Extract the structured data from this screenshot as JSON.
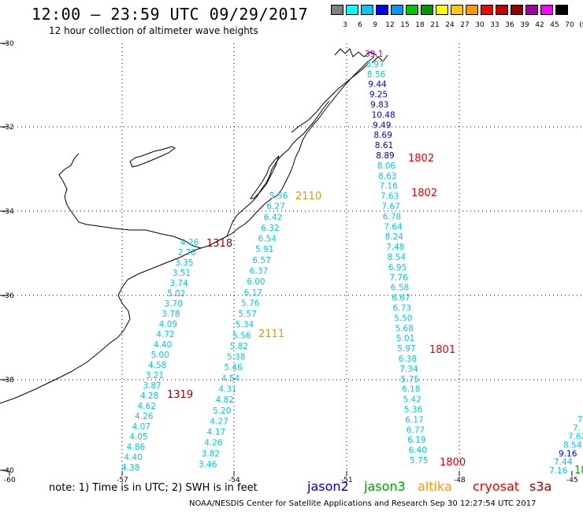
{
  "header": {
    "title": "12:00 – 23:59 UTC 09/29/2017",
    "subtitle": "12 hour collection of altimeter wave heights"
  },
  "legend": {
    "colors": [
      "#808080",
      "#00ffff",
      "#00c8ff",
      "#0000ff",
      "#0096ff",
      "#00c800",
      "#009600",
      "#ffff00",
      "#ffc800",
      "#ff9600",
      "#ff0000",
      "#c80000",
      "#960000",
      "#a000a0",
      "#ff00ff",
      "#000000"
    ],
    "labels": [
      "3",
      "6",
      "9",
      "12",
      "15",
      "18",
      "21",
      "24",
      "27",
      "30",
      "33",
      "36",
      "39",
      "42",
      "45",
      "70",
      "(ft)"
    ]
  },
  "axes": {
    "lat_labels": [
      "-30",
      "-32",
      "-34",
      "-36",
      "-38",
      "-40"
    ],
    "lon_labels": [
      "-60",
      "-57",
      "-54",
      "-51",
      "-48",
      "-45"
    ]
  },
  "tracks": [
    {
      "values": [
        "4.26",
        "2.78",
        "3.35",
        "3.51",
        "3.74",
        "5.02",
        "3.70",
        "3.78",
        "4.09",
        "4.72",
        "4.40",
        "5.00",
        "4.58",
        "3.21",
        "3.87",
        "4.28",
        "4.62",
        "4.26",
        "4.07",
        "4.05",
        "4.86",
        "4.40",
        "4.38"
      ],
      "color": "#00c8e6"
    },
    {
      "values": [
        "5.56",
        "6.27",
        "6.42",
        "6.32",
        "6.54",
        "5.91",
        "6.57",
        "6.37",
        "6.00",
        "6.17",
        "5.76",
        "5.57",
        "5.34",
        "5.56",
        "5.82",
        "5.38",
        "5.46",
        "4.54",
        "4.31",
        "4.82",
        "5.20",
        "4.27",
        "4.17",
        "4.26",
        "3.82",
        "3.46"
      ],
      "color": "#00c8e6"
    },
    {
      "values": [
        "39.1",
        "8.97",
        "8.56",
        "9.44",
        "9.25",
        "9.83",
        "10.48",
        "9.49",
        "8.69",
        "8.61",
        "8.89",
        "8.06",
        "8.63",
        "7.16",
        "7.63",
        "7.67",
        "6.78",
        "7.64",
        "8.24",
        "7.48",
        "8.54",
        "6.95",
        "7.76",
        "6.58",
        "6.67",
        "6.73",
        "5.50",
        "5.68",
        "5.01",
        "5.97",
        "6.38",
        "7.34",
        "5.75",
        "6.18",
        "5.42",
        "5.36",
        "6.17",
        "6.77",
        "6.19",
        "6.40",
        "5.75"
      ],
      "colors": [
        "#a000a0",
        "#00c8e6",
        "#00c8e6",
        "#0000c8",
        "#0000c8",
        "#0000c8",
        "#0000c8",
        "#0000c8",
        "#0000c8",
        "#0000c8",
        "#0000c8",
        "#00c8e6",
        "#00c8e6",
        "#00c8e6",
        "#00c8e6",
        "#00c8e6",
        "#00c8e6",
        "#00c8e6",
        "#00c8e6",
        "#00c8e6",
        "#00c8e6",
        "#00c8e6",
        "#00c8e6",
        "#00c8e6",
        "#00c8e6",
        "#00c8e6",
        "#00c8e6",
        "#00c8e6",
        "#00c8e6",
        "#00c8e6",
        "#00c8e6",
        "#00c8e6",
        "#00c8e6",
        "#00c8e6",
        "#00c8e6",
        "#00c8e6",
        "#00c8e6",
        "#00c8e6",
        "#00c8e6",
        "#00c8e6",
        "#00c8e6"
      ]
    },
    {
      "values": [
        "7.",
        "7.",
        "7.62",
        "8.54",
        "9.16",
        "7.44",
        "7.16"
      ],
      "colors": [
        "#00c8e6",
        "#00c8e6",
        "#00c8e6",
        "#00c8e6",
        "#0000c8",
        "#00c8e6",
        "#00c8e6"
      ]
    }
  ],
  "pass_labels": [
    {
      "text": "2110",
      "color": "#e69600"
    },
    {
      "text": "2111",
      "color": "#e69600"
    },
    {
      "text": "1318",
      "color": "#960000"
    },
    {
      "text": "1319",
      "color": "#960000"
    },
    {
      "text": "1802",
      "color": "#e60000"
    },
    {
      "text": "1802",
      "color": "#e60000"
    },
    {
      "text": "1801",
      "color": "#e60000"
    },
    {
      "text": "1800",
      "color": "#e60000"
    },
    {
      "text": "18",
      "color": "#00a000"
    }
  ],
  "note": "note:  1) Time is in UTC;  2) SWH is in feet",
  "satellites": [
    {
      "name": "jason2",
      "color": "#0000c8"
    },
    {
      "name": "jason3",
      "color": "#00a000"
    },
    {
      "name": "altika",
      "color": "#ff9600"
    },
    {
      "name": "cryosat",
      "color": "#e60000"
    },
    {
      "name": "s3a",
      "color": "#960000"
    }
  ],
  "footer": "NOAA/NESDIS Center for Satellite Applications and Research     Sep 30 12:27:54 UTC 2017"
}
